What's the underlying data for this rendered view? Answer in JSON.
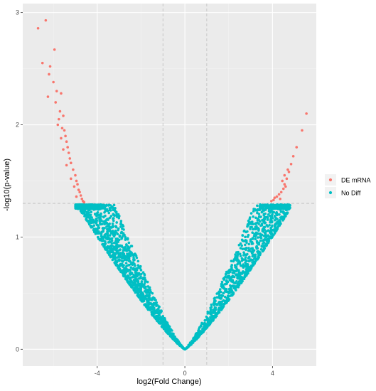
{
  "chart_data": {
    "type": "scatter",
    "xlabel": "log2(Fold Change)",
    "ylabel": "-log10(p-value)",
    "xlim": [
      -7.4,
      6.0
    ],
    "ylim": [
      -0.15,
      3.08
    ],
    "x_ticks": [
      -4,
      0,
      4
    ],
    "y_ticks": [
      0,
      1,
      2,
      3
    ],
    "x_tick_labels": [
      "-4",
      "0",
      "4"
    ],
    "y_tick_labels": [
      "0",
      "1",
      "2",
      "3"
    ],
    "grid": true,
    "threshold_lines": {
      "x": [
        -1,
        1
      ],
      "y": 1.3
    },
    "legend_position": "right",
    "series": [
      {
        "name": "DE mRNA",
        "color": "#F8766D",
        "points": [
          [
            -6.35,
            2.93
          ],
          [
            -6.7,
            2.86
          ],
          [
            -5.95,
            2.67
          ],
          [
            -6.5,
            2.55
          ],
          [
            -6.15,
            2.52
          ],
          [
            -6.2,
            2.45
          ],
          [
            -6.0,
            2.38
          ],
          [
            -5.85,
            2.3
          ],
          [
            -5.65,
            2.28
          ],
          [
            -6.25,
            2.25
          ],
          [
            -5.9,
            2.2
          ],
          [
            -5.7,
            2.12
          ],
          [
            -5.55,
            2.08
          ],
          [
            -5.75,
            2.05
          ],
          [
            -5.8,
            2.0
          ],
          [
            -5.6,
            1.97
          ],
          [
            -5.5,
            1.95
          ],
          [
            -5.45,
            1.9
          ],
          [
            -5.65,
            1.88
          ],
          [
            -5.4,
            1.85
          ],
          [
            -5.35,
            1.8
          ],
          [
            -5.55,
            1.78
          ],
          [
            -5.3,
            1.75
          ],
          [
            -5.25,
            1.7
          ],
          [
            -5.2,
            1.66
          ],
          [
            -5.4,
            1.64
          ],
          [
            -5.1,
            1.6
          ],
          [
            -5.0,
            1.55
          ],
          [
            -5.2,
            1.52
          ],
          [
            -4.95,
            1.5
          ],
          [
            -4.9,
            1.47
          ],
          [
            -5.05,
            1.45
          ],
          [
            -4.85,
            1.42
          ],
          [
            -4.8,
            1.4
          ],
          [
            -4.75,
            1.37
          ],
          [
            -4.95,
            1.36
          ],
          [
            -4.7,
            1.34
          ],
          [
            -4.65,
            1.32
          ],
          [
            -4.6,
            1.31
          ],
          [
            5.55,
            2.1
          ],
          [
            5.35,
            1.95
          ],
          [
            5.1,
            1.8
          ],
          [
            4.95,
            1.72
          ],
          [
            4.85,
            1.65
          ],
          [
            4.75,
            1.58
          ],
          [
            4.65,
            1.52
          ],
          [
            4.55,
            1.47
          ],
          [
            4.5,
            1.43
          ],
          [
            4.4,
            1.4
          ],
          [
            4.3,
            1.38
          ],
          [
            4.2,
            1.36
          ],
          [
            4.1,
            1.35
          ],
          [
            4.05,
            1.33
          ],
          [
            3.95,
            1.32
          ],
          [
            4.55,
            1.55
          ],
          [
            4.45,
            1.5
          ],
          [
            4.7,
            1.6
          ],
          [
            4.6,
            1.45
          ],
          [
            4.35,
            1.34
          ]
        ]
      },
      {
        "name": "No Diff",
        "color": "#00BFC4",
        "curve": "y = k * |x|^1.2 for x in [-5.0, 4.8], k from 0.19 to 0.32, upper envelope y < 1.3"
      }
    ]
  }
}
